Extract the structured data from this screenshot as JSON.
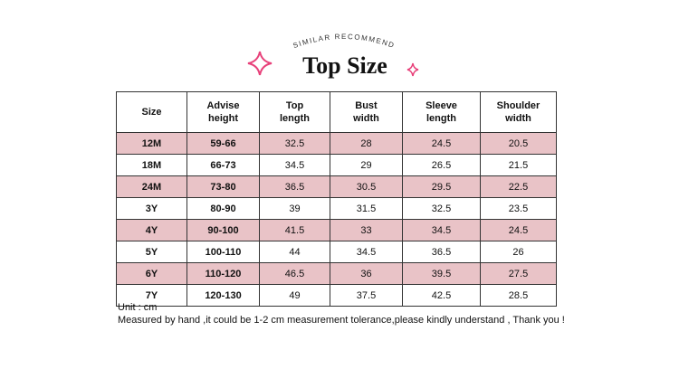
{
  "header": {
    "subtitle": "SIMILAR RECOMMEND",
    "title": "Top Size"
  },
  "table": {
    "columns": [
      "Size",
      "Advise\nheight",
      "Top\nlength",
      "Bust\nwidth",
      "Sleeve\nlength",
      "Shoulder\nwidth"
    ],
    "rows": [
      [
        "12M",
        "59-66",
        "32.5",
        "28",
        "24.5",
        "20.5"
      ],
      [
        "18M",
        "66-73",
        "34.5",
        "29",
        "26.5",
        "21.5"
      ],
      [
        "24M",
        "73-80",
        "36.5",
        "30.5",
        "29.5",
        "22.5"
      ],
      [
        "3Y",
        "80-90",
        "39",
        "31.5",
        "32.5",
        "23.5"
      ],
      [
        "4Y",
        "90-100",
        "41.5",
        "33",
        "34.5",
        "24.5"
      ],
      [
        "5Y",
        "100-110",
        "44",
        "34.5",
        "36.5",
        "26"
      ],
      [
        "6Y",
        "110-120",
        "46.5",
        "36",
        "39.5",
        "27.5"
      ],
      [
        "7Y",
        "120-130",
        "49",
        "37.5",
        "42.5",
        "28.5"
      ]
    ]
  },
  "notes": [
    "Unit : cm",
    "Measured by hand ,it could be 1-2 cm measurement tolerance,please kindly understand , Thank you !"
  ]
}
